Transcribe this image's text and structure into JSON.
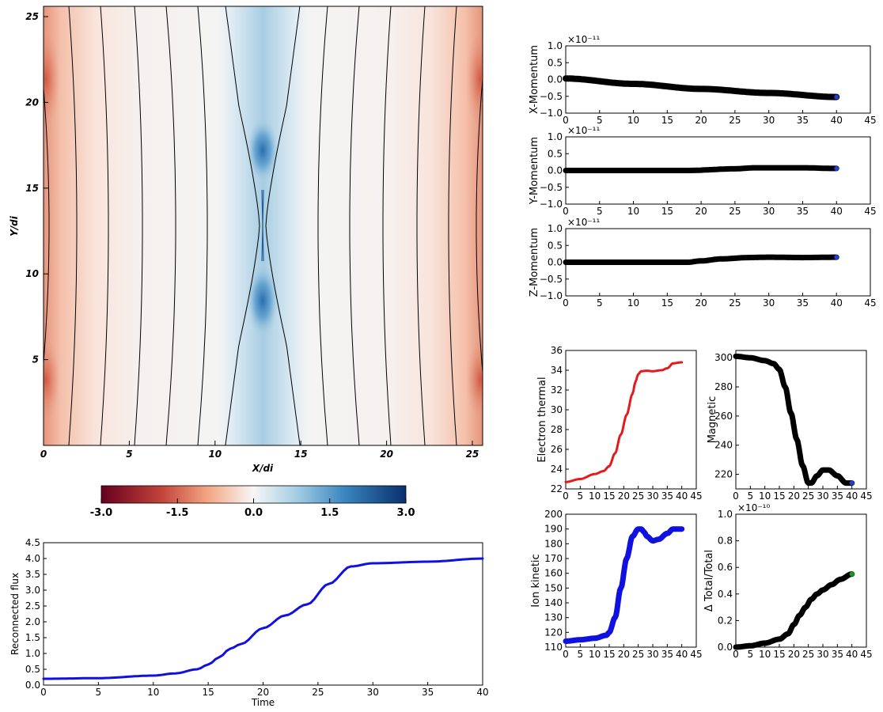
{
  "colors": {
    "red": "#e41a1c",
    "blue": "#1010e0",
    "black": "#000000",
    "green": "#1a9a1a",
    "dot_blue": "#2040d0"
  },
  "chart_data": [
    {
      "id": "field_map",
      "type": "heatmap",
      "xlabel": "X/di",
      "ylabel": "Y/di",
      "xlim": [
        0,
        25.6
      ],
      "ylim": [
        0,
        25.6
      ],
      "xticks": [
        0,
        5,
        10,
        15,
        20,
        25
      ],
      "yticks": [
        5,
        10,
        15,
        20,
        25
      ],
      "colormap": "RdBu",
      "colorbar": {
        "range": [
          -3.0,
          3.0
        ],
        "ticks": [
          "-3.0",
          "-1.5",
          "0.0",
          "1.5",
          "3.0"
        ]
      },
      "description": [
        "center_x=12.8",
        "xpoint_y=13.0"
      ]
    },
    {
      "id": "reconnected_flux",
      "type": "line",
      "xlabel": "Time",
      "ylabel": "Reconnected flux",
      "xlim": [
        0,
        40
      ],
      "ylim": [
        0,
        4.5
      ],
      "xticks": [
        0,
        5,
        10,
        15,
        20,
        25,
        30,
        35,
        40
      ],
      "yticks": [
        "0.0",
        "0.5",
        "1.0",
        "1.5",
        "2.0",
        "2.5",
        "3.0",
        "3.5",
        "4.0",
        "4.5"
      ],
      "series": [
        {
          "color": "blue",
          "x": [
            0,
            5,
            10,
            12,
            14,
            15,
            16,
            17,
            18,
            20,
            22,
            24,
            26,
            28,
            30,
            35,
            40
          ],
          "y": [
            0.2,
            0.22,
            0.3,
            0.37,
            0.5,
            0.65,
            0.88,
            1.15,
            1.3,
            1.8,
            2.2,
            2.55,
            3.2,
            3.75,
            3.85,
            3.9,
            4.0
          ]
        }
      ]
    },
    {
      "id": "x_momentum",
      "type": "scatter",
      "ylabel": "X-Momentum",
      "multiplier": "×10⁻¹¹",
      "xlim": [
        0,
        45
      ],
      "ylim": [
        -1.0,
        1.0
      ],
      "xticks": [
        0,
        5,
        10,
        15,
        20,
        25,
        30,
        35,
        40,
        45
      ],
      "yticks": [
        "1.0",
        "0.5",
        "0.0",
        "−0.5",
        "−1.0"
      ],
      "series": [
        {
          "color": "black",
          "x": [
            0,
            10,
            20,
            30,
            40
          ],
          "y": [
            0.03,
            -0.13,
            -0.28,
            -0.4,
            -0.52
          ]
        }
      ]
    },
    {
      "id": "y_momentum",
      "type": "scatter",
      "ylabel": "Y-Momentum",
      "multiplier": "×10⁻¹¹",
      "xlim": [
        0,
        45
      ],
      "ylim": [
        -1.0,
        1.0
      ],
      "xticks": [
        0,
        5,
        10,
        15,
        20,
        25,
        30,
        35,
        40,
        45
      ],
      "yticks": [
        "1.0",
        "0.5",
        "0.0",
        "−0.5",
        "−1.0"
      ],
      "series": [
        {
          "color": "black",
          "x": [
            0,
            18,
            25,
            28,
            35,
            40
          ],
          "y": [
            0.0,
            0.0,
            0.05,
            0.08,
            0.08,
            0.06
          ]
        }
      ]
    },
    {
      "id": "z_momentum",
      "type": "scatter",
      "ylabel": "Z-Momentum",
      "multiplier": "×10⁻¹¹",
      "xlim": [
        0,
        45
      ],
      "ylim": [
        -1.0,
        1.0
      ],
      "xticks": [
        0,
        5,
        10,
        15,
        20,
        25,
        30,
        35,
        40,
        45
      ],
      "yticks": [
        "1.0",
        "0.5",
        "0.0",
        "−0.5",
        "−1.0"
      ],
      "series": [
        {
          "color": "black",
          "x": [
            0,
            18,
            20,
            23,
            27,
            30,
            35,
            40
          ],
          "y": [
            0.0,
            0.0,
            0.04,
            0.1,
            0.14,
            0.15,
            0.14,
            0.15
          ]
        }
      ]
    },
    {
      "id": "electron_thermal",
      "type": "line",
      "ylabel": "Electron thermal",
      "xlim": [
        0,
        45
      ],
      "ylim": [
        22,
        36
      ],
      "xticks": [
        0,
        5,
        10,
        15,
        20,
        25,
        30,
        35,
        40,
        45
      ],
      "yticks": [
        36,
        34,
        32,
        30,
        28,
        26,
        24,
        22
      ],
      "series": [
        {
          "color": "red",
          "x": [
            0,
            5,
            10,
            13,
            15,
            17,
            19,
            21,
            23,
            24,
            25,
            26,
            28,
            30,
            33,
            35,
            37,
            40
          ],
          "y": [
            22.7,
            23.0,
            23.5,
            23.8,
            24.3,
            25.6,
            27.5,
            29.5,
            31.6,
            32.8,
            33.6,
            33.9,
            33.95,
            33.9,
            34.0,
            34.2,
            34.7,
            34.8
          ]
        }
      ]
    },
    {
      "id": "magnetic",
      "type": "line",
      "ylabel": "Magnetic",
      "xlim": [
        0,
        45
      ],
      "ylim": [
        210,
        305
      ],
      "xticks": [
        0,
        5,
        10,
        15,
        20,
        25,
        30,
        35,
        40,
        45
      ],
      "yticks": [
        300,
        280,
        260,
        240,
        220
      ],
      "series": [
        {
          "color": "black",
          "x": [
            0,
            5,
            10,
            13,
            15,
            17,
            19,
            21,
            23,
            25,
            26,
            28,
            30,
            32,
            35,
            38,
            40
          ],
          "y": [
            301,
            300,
            298,
            296,
            292,
            280,
            262,
            244,
            226,
            214,
            214,
            219,
            223,
            223,
            219,
            214,
            214
          ]
        }
      ]
    },
    {
      "id": "ion_kinetic",
      "type": "line",
      "ylabel": "Ion kinetic",
      "xlim": [
        0,
        45
      ],
      "ylim": [
        110,
        200
      ],
      "xticks": [
        0,
        5,
        10,
        15,
        20,
        25,
        30,
        35,
        40,
        45
      ],
      "yticks": [
        200,
        190,
        180,
        170,
        160,
        150,
        140,
        130,
        120,
        110
      ],
      "series": [
        {
          "color": "blue",
          "x": [
            0,
            5,
            10,
            14,
            15,
            17,
            19,
            21,
            23,
            25,
            26,
            27,
            28,
            30,
            32,
            35,
            37,
            40
          ],
          "y": [
            114,
            115,
            116,
            118,
            120,
            130,
            150,
            170,
            185,
            190,
            190,
            188,
            185,
            182,
            183,
            187,
            190,
            190
          ]
        }
      ]
    },
    {
      "id": "delta_total",
      "type": "line",
      "ylabel": "Δ Total/Total",
      "multiplier": "×10⁻¹⁰",
      "xlim": [
        0,
        45
      ],
      "ylim": [
        0.0,
        1.0
      ],
      "xticks": [
        0,
        5,
        10,
        15,
        20,
        25,
        30,
        35,
        40,
        45
      ],
      "yticks": [
        "1.0",
        "0.8",
        "0.6",
        "0.4",
        "0.2",
        "0.0"
      ],
      "series": [
        {
          "color": "black",
          "x": [
            0,
            5,
            10,
            15,
            18,
            20,
            22,
            24,
            26,
            28,
            30,
            33,
            36,
            40
          ],
          "y": [
            0.0,
            0.01,
            0.03,
            0.06,
            0.1,
            0.17,
            0.24,
            0.3,
            0.36,
            0.4,
            0.43,
            0.47,
            0.51,
            0.55
          ]
        }
      ]
    }
  ]
}
